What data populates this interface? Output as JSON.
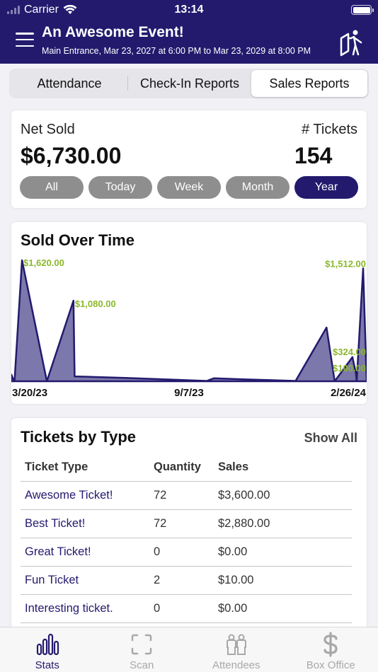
{
  "status_bar": {
    "carrier": "Carrier",
    "time": "13:14"
  },
  "header": {
    "title": "An Awesome Event!",
    "subtitle": "Main Entrance, Mar 23, 2027 at 6:00 PM to Mar 23, 2029 at 8:00 PM",
    "menu_icon": "hamburger-menu-icon",
    "right_icon": "kiosk-mode-icon"
  },
  "segments": [
    {
      "label": "Attendance",
      "active": false
    },
    {
      "label": "Check-In Reports",
      "active": false
    },
    {
      "label": "Sales Reports",
      "active": true
    }
  ],
  "summary": {
    "net_label": "Net Sold",
    "net_value": "$6,730.00",
    "tickets_label": "# Tickets",
    "tickets_value": "154",
    "ranges": [
      {
        "label": "All",
        "active": false
      },
      {
        "label": "Today",
        "active": false
      },
      {
        "label": "Week",
        "active": false
      },
      {
        "label": "Month",
        "active": false
      },
      {
        "label": "Year",
        "active": true
      }
    ]
  },
  "chart_data": {
    "type": "area",
    "title": "Sold Over Time",
    "x_tick_labels": [
      "3/20/23",
      "9/7/23",
      "2/26/24"
    ],
    "fill_color": "#7c78ab",
    "stroke_color": "#231a6e",
    "label_color": "#8ab82a",
    "ylim": [
      0,
      1620
    ],
    "points": [
      {
        "t": 0.0,
        "v": 90
      },
      {
        "t": 0.005,
        "v": 30
      },
      {
        "t": 0.009,
        "v": 0
      },
      {
        "t": 0.03,
        "v": 1620,
        "label": "$1,620.00"
      },
      {
        "t": 0.1,
        "v": 0
      },
      {
        "t": 0.175,
        "v": 1080,
        "label": "$1,080.00"
      },
      {
        "t": 0.178,
        "v": 65
      },
      {
        "t": 0.32,
        "v": 45
      },
      {
        "t": 0.55,
        "v": 5
      },
      {
        "t": 0.57,
        "v": 40
      },
      {
        "t": 0.66,
        "v": 25
      },
      {
        "t": 0.8,
        "v": 5
      },
      {
        "t": 0.887,
        "v": 720
      },
      {
        "t": 0.91,
        "v": 0
      },
      {
        "t": 0.96,
        "v": 324,
        "label": "$324.00"
      },
      {
        "t": 0.97,
        "v": 100,
        "label": "$100.00"
      },
      {
        "t": 0.972,
        "v": 0
      },
      {
        "t": 0.99,
        "v": 1512,
        "label": "$1,512.00"
      },
      {
        "t": 1.0,
        "v": 0
      }
    ]
  },
  "tickets_by_type": {
    "title": "Tickets by Type",
    "show_all_label": "Show All",
    "columns": [
      "Ticket Type",
      "Quantity",
      "Sales"
    ],
    "rows": [
      {
        "type": "Awesome Ticket!",
        "quantity": "72",
        "sales": "$3,600.00"
      },
      {
        "type": "Best Ticket!",
        "quantity": "72",
        "sales": "$2,880.00"
      },
      {
        "type": "Great Ticket!",
        "quantity": "0",
        "sales": "$0.00"
      },
      {
        "type": "Fun Ticket",
        "quantity": "2",
        "sales": "$10.00"
      },
      {
        "type": "Interesting ticket.",
        "quantity": "0",
        "sales": "$0.00"
      }
    ]
  },
  "tabbar": [
    {
      "label": "Stats",
      "icon": "stats-bars-icon",
      "active": true
    },
    {
      "label": "Scan",
      "icon": "scan-frame-icon",
      "active": false
    },
    {
      "label": "Attendees",
      "icon": "attendees-icon",
      "active": false
    },
    {
      "label": "Box Office",
      "icon": "dollar-icon",
      "active": false
    }
  ],
  "colors": {
    "primary": "#231a6e",
    "inactive_pill": "#8e8e8e",
    "chart_label": "#8ab82a"
  }
}
